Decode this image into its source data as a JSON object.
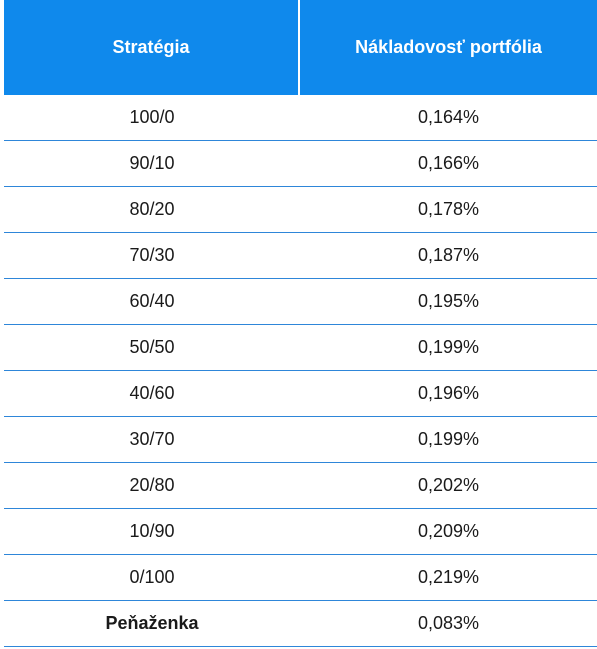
{
  "table": {
    "headers": [
      "Stratégia",
      "Nákladovosť portfólia"
    ],
    "rows": [
      {
        "strategy": "100/0",
        "cost": "0,164%"
      },
      {
        "strategy": "90/10",
        "cost": "0,166%"
      },
      {
        "strategy": "80/20",
        "cost": "0,178%"
      },
      {
        "strategy": "70/30",
        "cost": "0,187%"
      },
      {
        "strategy": "60/40",
        "cost": "0,195%"
      },
      {
        "strategy": "50/50",
        "cost": "0,199%"
      },
      {
        "strategy": "40/60",
        "cost": "0,196%"
      },
      {
        "strategy": "30/70",
        "cost": "0,199%"
      },
      {
        "strategy": "20/80",
        "cost": "0,202%"
      },
      {
        "strategy": "10/90",
        "cost": "0,209%"
      },
      {
        "strategy": "0/100",
        "cost": "0,219%"
      },
      {
        "strategy": "Peňaženka",
        "cost": "0,083%"
      }
    ],
    "colors": {
      "header_bg": "#0f89ec",
      "header_text": "#ffffff",
      "row_border": "#2e86d9"
    }
  }
}
